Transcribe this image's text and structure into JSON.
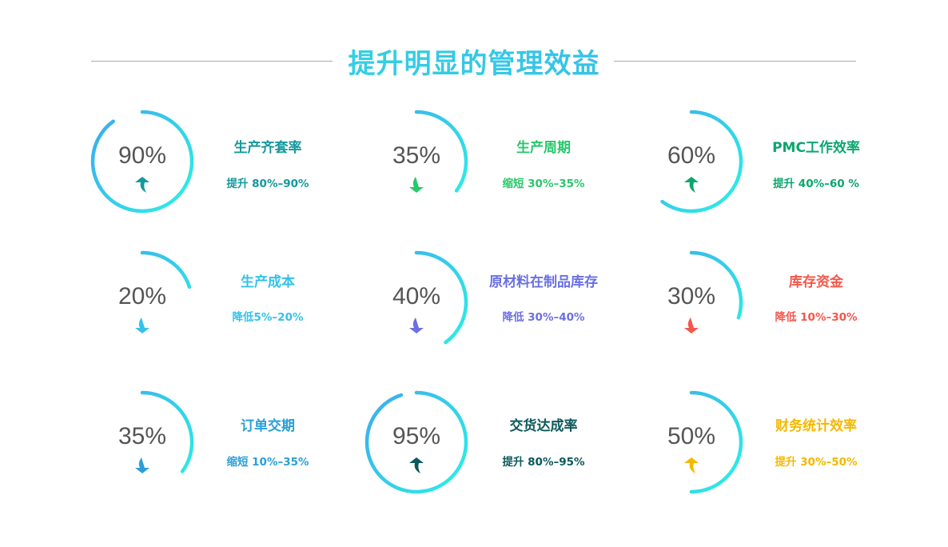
{
  "title": "提升明显的管理效益",
  "gradient": {
    "start": "#2ee8e6",
    "end": "#3ab3ec"
  },
  "items": [
    {
      "value": "90%",
      "level": 90,
      "name": "生产齐套率",
      "change": "提升 80%–90%",
      "direction": "up",
      "color": "#15999c"
    },
    {
      "value": "35%",
      "level": 35,
      "name": "生产周期",
      "change": "缩短 30%–35%",
      "direction": "down",
      "color": "#27c86a"
    },
    {
      "value": "60%",
      "level": 60,
      "name": "PMC工作效率",
      "change": "提升 40%–60 %",
      "direction": "up",
      "color": "#0aa66e"
    },
    {
      "value": "20%",
      "level": 20,
      "name": "生产成本",
      "change": "降低5%–20%",
      "direction": "down",
      "color": "#33c2ea"
    },
    {
      "value": "40%",
      "level": 40,
      "name": "原材料在制品库存",
      "change": "降低 30%–40%",
      "direction": "down",
      "color": "#6a70e2"
    },
    {
      "value": "30%",
      "level": 30,
      "name": "库存资金",
      "change": "降低 10%–30%",
      "direction": "down",
      "color": "#f5564a"
    },
    {
      "value": "35%",
      "level": 35,
      "name": "订单交期",
      "change": "缩短 10%–35%",
      "direction": "down",
      "color": "#2a9fd8"
    },
    {
      "value": "95%",
      "level": 95,
      "name": "交货达成率",
      "change": "提升 80%–95%",
      "direction": "up",
      "color": "#0d585c"
    },
    {
      "value": "50%",
      "level": 50,
      "name": "财务统计效率",
      "change": "提升 30%–50%",
      "direction": "up",
      "color": "#f5b800"
    }
  ]
}
